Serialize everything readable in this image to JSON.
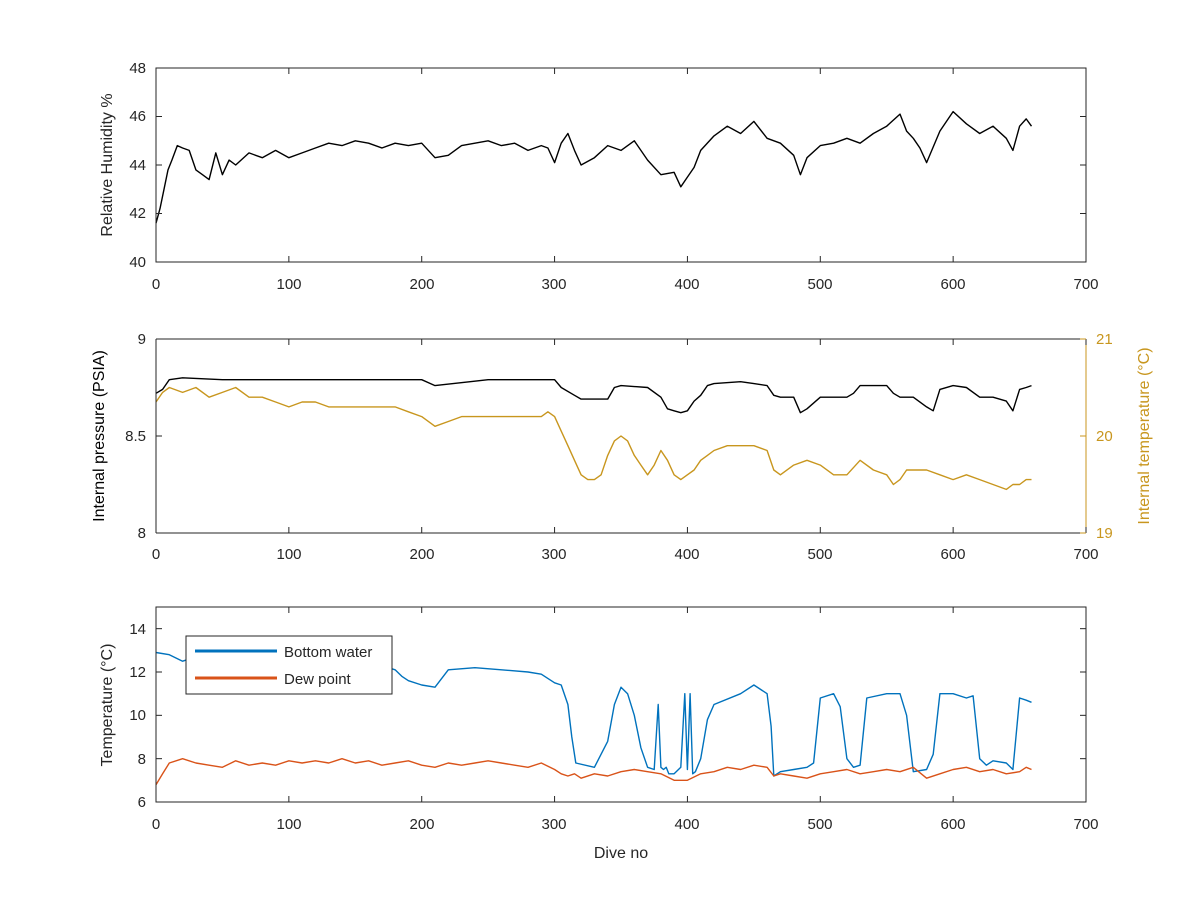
{
  "chart_data": [
    {
      "type": "line",
      "panel": "top",
      "xlabel": "",
      "ylabel": "Relative Humidity %",
      "xlim": [
        0,
        700
      ],
      "ylim": [
        40,
        48
      ],
      "xticks": [
        "0",
        "100",
        "200",
        "300",
        "400",
        "500",
        "600",
        "700"
      ],
      "yticks": [
        "40",
        "42",
        "44",
        "46",
        "48"
      ],
      "grid": false,
      "series": [
        {
          "color": "#000000",
          "x": [
            0,
            3,
            6,
            9,
            12,
            16,
            20,
            25,
            30,
            35,
            40,
            45,
            50,
            55,
            60,
            70,
            80,
            90,
            100,
            110,
            120,
            130,
            140,
            150,
            160,
            170,
            180,
            190,
            200,
            210,
            220,
            230,
            240,
            250,
            260,
            270,
            280,
            290,
            295,
            300,
            305,
            310,
            315,
            320,
            330,
            340,
            350,
            360,
            370,
            380,
            390,
            395,
            400,
            405,
            410,
            420,
            430,
            440,
            450,
            460,
            470,
            480,
            485,
            490,
            500,
            510,
            520,
            530,
            540,
            550,
            560,
            565,
            570,
            575,
            580,
            590,
            600,
            610,
            620,
            630,
            640,
            645,
            650,
            655,
            659
          ],
          "y": [
            41.6,
            42.2,
            43.0,
            43.8,
            44.2,
            44.8,
            44.7,
            44.6,
            43.8,
            43.6,
            43.4,
            44.5,
            43.6,
            44.2,
            44.0,
            44.5,
            44.3,
            44.6,
            44.3,
            44.5,
            44.7,
            44.9,
            44.8,
            45.0,
            44.9,
            44.7,
            44.9,
            44.8,
            44.9,
            44.3,
            44.4,
            44.8,
            44.9,
            45.0,
            44.8,
            44.9,
            44.6,
            44.8,
            44.7,
            44.1,
            44.9,
            45.3,
            44.6,
            44.0,
            44.3,
            44.8,
            44.6,
            45.0,
            44.2,
            43.6,
            43.7,
            43.1,
            43.5,
            43.9,
            44.6,
            45.2,
            45.6,
            45.3,
            45.8,
            45.1,
            44.9,
            44.4,
            43.6,
            44.3,
            44.8,
            44.9,
            45.1,
            44.9,
            45.3,
            45.6,
            46.1,
            45.4,
            45.1,
            44.7,
            44.1,
            45.4,
            46.2,
            45.7,
            45.3,
            45.6,
            45.1,
            44.6,
            45.6,
            45.9,
            45.6
          ]
        }
      ]
    },
    {
      "type": "line",
      "panel": "middle",
      "xlabel": "",
      "ylabel": "Internal pressure (PSIA)",
      "y2label": "Internal temperature (°C)",
      "xlim": [
        0,
        700
      ],
      "ylim": [
        8,
        9
      ],
      "y2lim": [
        19,
        21
      ],
      "xticks": [
        "0",
        "100",
        "200",
        "300",
        "400",
        "500",
        "600",
        "700"
      ],
      "yticks": [
        "8",
        "8.5",
        "9"
      ],
      "y2ticks": [
        "19",
        "20",
        "21"
      ],
      "grid": false,
      "series": [
        {
          "axis": "left",
          "color": "#000000",
          "x": [
            0,
            5,
            10,
            20,
            50,
            100,
            150,
            200,
            210,
            250,
            300,
            305,
            315,
            320,
            340,
            345,
            350,
            370,
            380,
            385,
            390,
            395,
            400,
            405,
            410,
            415,
            420,
            440,
            450,
            460,
            465,
            470,
            480,
            485,
            490,
            500,
            510,
            520,
            525,
            530,
            550,
            555,
            560,
            570,
            580,
            585,
            590,
            600,
            610,
            620,
            630,
            640,
            645,
            650,
            655,
            659
          ],
          "y": [
            8.72,
            8.74,
            8.79,
            8.8,
            8.79,
            8.79,
            8.79,
            8.79,
            8.76,
            8.79,
            8.79,
            8.75,
            8.71,
            8.69,
            8.69,
            8.75,
            8.76,
            8.75,
            8.7,
            8.64,
            8.63,
            8.62,
            8.63,
            8.68,
            8.71,
            8.76,
            8.77,
            8.78,
            8.77,
            8.76,
            8.71,
            8.7,
            8.7,
            8.62,
            8.64,
            8.7,
            8.7,
            8.7,
            8.72,
            8.76,
            8.76,
            8.72,
            8.7,
            8.7,
            8.65,
            8.63,
            8.74,
            8.76,
            8.75,
            8.7,
            8.7,
            8.68,
            8.63,
            8.74,
            8.75,
            8.76
          ]
        },
        {
          "axis": "right",
          "color": "#C8961E",
          "x": [
            0,
            5,
            10,
            20,
            30,
            40,
            50,
            60,
            70,
            80,
            90,
            100,
            110,
            120,
            130,
            140,
            150,
            160,
            170,
            180,
            190,
            200,
            210,
            220,
            230,
            240,
            250,
            260,
            270,
            280,
            290,
            295,
            300,
            305,
            310,
            315,
            320,
            325,
            330,
            335,
            340,
            345,
            350,
            355,
            360,
            365,
            370,
            375,
            380,
            385,
            390,
            395,
            400,
            405,
            410,
            415,
            420,
            430,
            440,
            450,
            460,
            465,
            470,
            480,
            490,
            500,
            510,
            520,
            530,
            540,
            550,
            555,
            560,
            565,
            570,
            580,
            590,
            600,
            610,
            620,
            630,
            640,
            645,
            650,
            655,
            659
          ],
          "y": [
            20.35,
            20.45,
            20.5,
            20.45,
            20.5,
            20.4,
            20.45,
            20.5,
            20.4,
            20.4,
            20.35,
            20.3,
            20.35,
            20.35,
            20.3,
            20.3,
            20.3,
            20.3,
            20.3,
            20.3,
            20.25,
            20.2,
            20.1,
            20.15,
            20.2,
            20.2,
            20.2,
            20.2,
            20.2,
            20.2,
            20.2,
            20.25,
            20.2,
            20.05,
            19.9,
            19.75,
            19.6,
            19.55,
            19.55,
            19.6,
            19.8,
            19.95,
            20.0,
            19.95,
            19.8,
            19.7,
            19.6,
            19.7,
            19.85,
            19.75,
            19.6,
            19.55,
            19.6,
            19.65,
            19.75,
            19.8,
            19.85,
            19.9,
            19.9,
            19.9,
            19.85,
            19.65,
            19.6,
            19.7,
            19.75,
            19.7,
            19.6,
            19.6,
            19.75,
            19.65,
            19.6,
            19.5,
            19.55,
            19.65,
            19.65,
            19.65,
            19.6,
            19.55,
            19.6,
            19.55,
            19.5,
            19.45,
            19.5,
            19.5,
            19.55,
            19.55
          ]
        }
      ]
    },
    {
      "type": "line",
      "panel": "bottom",
      "xlabel": "Dive no",
      "ylabel": "Temperature (°C)",
      "xlim": [
        0,
        700
      ],
      "ylim": [
        6,
        15
      ],
      "xticks": [
        "0",
        "100",
        "200",
        "300",
        "400",
        "500",
        "600",
        "700"
      ],
      "yticks": [
        "6",
        "8",
        "10",
        "12",
        "14"
      ],
      "grid": false,
      "legend": {
        "position": "top-left",
        "entries": [
          "Bottom water",
          "Dew point"
        ]
      },
      "series": [
        {
          "name": "Bottom water",
          "color": "#0072BD",
          "x": [
            0,
            10,
            20,
            30,
            50,
            80,
            100,
            130,
            160,
            180,
            185,
            190,
            200,
            210,
            220,
            240,
            260,
            280,
            290,
            300,
            305,
            310,
            313,
            316,
            330,
            340,
            345,
            350,
            355,
            360,
            365,
            370,
            375,
            378,
            380,
            382,
            384,
            386,
            390,
            395,
            398,
            400,
            402,
            404,
            406,
            410,
            415,
            420,
            440,
            450,
            460,
            463,
            465,
            470,
            480,
            490,
            495,
            500,
            510,
            515,
            520,
            525,
            530,
            535,
            550,
            560,
            565,
            570,
            580,
            585,
            590,
            600,
            610,
            615,
            620,
            625,
            630,
            640,
            645,
            650,
            655,
            659
          ],
          "y": [
            12.9,
            12.8,
            12.5,
            12.7,
            12.9,
            12.8,
            12.6,
            12.7,
            12.5,
            12.1,
            11.8,
            11.6,
            11.4,
            11.3,
            12.1,
            12.2,
            12.1,
            12.0,
            11.9,
            11.5,
            11.4,
            10.5,
            9.0,
            7.8,
            7.6,
            8.8,
            10.5,
            11.3,
            11.0,
            10.0,
            8.5,
            7.6,
            7.5,
            10.5,
            7.6,
            7.5,
            7.6,
            7.3,
            7.3,
            7.6,
            11.0,
            7.5,
            11.0,
            7.3,
            7.4,
            8.0,
            9.8,
            10.5,
            11.0,
            11.4,
            11.0,
            9.5,
            7.2,
            7.4,
            7.5,
            7.6,
            7.8,
            10.8,
            11.0,
            10.4,
            8.0,
            7.6,
            7.7,
            10.8,
            11.0,
            11.0,
            10.0,
            7.4,
            7.5,
            8.2,
            11.0,
            11.0,
            10.8,
            10.9,
            8.0,
            7.7,
            7.9,
            7.8,
            7.5,
            10.8,
            10.7,
            10.6
          ]
        },
        {
          "name": "Dew point",
          "color": "#D95319",
          "x": [
            0,
            5,
            10,
            20,
            30,
            40,
            50,
            60,
            70,
            80,
            90,
            100,
            110,
            120,
            130,
            140,
            150,
            160,
            170,
            180,
            190,
            200,
            210,
            220,
            230,
            240,
            250,
            260,
            270,
            280,
            290,
            300,
            305,
            310,
            315,
            320,
            330,
            340,
            350,
            360,
            370,
            380,
            390,
            400,
            410,
            420,
            430,
            440,
            450,
            460,
            465,
            470,
            480,
            490,
            500,
            510,
            520,
            530,
            540,
            550,
            560,
            570,
            580,
            590,
            600,
            610,
            620,
            630,
            640,
            650,
            655,
            659
          ],
          "y": [
            6.8,
            7.3,
            7.8,
            8.0,
            7.8,
            7.7,
            7.6,
            7.9,
            7.7,
            7.8,
            7.7,
            7.9,
            7.8,
            7.9,
            7.8,
            8.0,
            7.8,
            7.9,
            7.7,
            7.8,
            7.9,
            7.7,
            7.6,
            7.8,
            7.7,
            7.8,
            7.9,
            7.8,
            7.7,
            7.6,
            7.8,
            7.5,
            7.3,
            7.2,
            7.3,
            7.1,
            7.3,
            7.2,
            7.4,
            7.5,
            7.4,
            7.3,
            7.0,
            7.0,
            7.3,
            7.4,
            7.6,
            7.5,
            7.7,
            7.6,
            7.2,
            7.3,
            7.2,
            7.1,
            7.3,
            7.4,
            7.5,
            7.3,
            7.4,
            7.5,
            7.4,
            7.6,
            7.1,
            7.3,
            7.5,
            7.6,
            7.4,
            7.5,
            7.3,
            7.4,
            7.6,
            7.5
          ]
        }
      ]
    }
  ]
}
